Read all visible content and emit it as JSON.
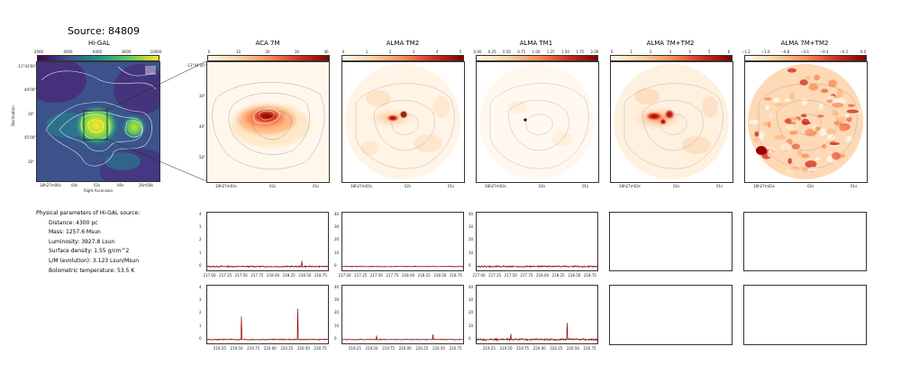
{
  "header": {
    "title": "Source: 84809"
  },
  "panels": [
    {
      "title": "Hi-GAL",
      "colorbar": [
        "2000",
        "4000",
        "6000",
        "8000",
        "10000"
      ]
    },
    {
      "title": "ACA 7M",
      "colorbar": [
        "0",
        "10",
        "20",
        "30",
        "40"
      ]
    },
    {
      "title": "ALMA TM2",
      "colorbar": [
        "0",
        "1",
        "2",
        "3",
        "4",
        "5"
      ]
    },
    {
      "title": "ALMA TM1",
      "colorbar": [
        "0.00",
        "0.25",
        "0.50",
        "0.75",
        "1.00",
        "1.25",
        "1.50",
        "1.75",
        "2.00"
      ]
    },
    {
      "title": "ALMA 7M+TM2",
      "colorbar": [
        "0",
        "1",
        "2",
        "3",
        "4",
        "5",
        "6"
      ]
    },
    {
      "title": "ALMA 7M+TM2",
      "colorbar": [
        "−1.2",
        "−1.0",
        "−0.8",
        "−0.6",
        "−0.4",
        "−0.2",
        "0.0"
      ]
    }
  ],
  "higal_axes": {
    "xlabel": "Right Ascension",
    "ylabel": "Declination",
    "xticks": [
      "18h27m06s",
      "04s",
      "02s",
      "00s",
      "26m58s"
    ],
    "yticks": [
      "-11°43'00\"",
      "44'00\"",
      "30\"",
      "45'00\"",
      "30\""
    ]
  },
  "map_axes": {
    "xticks": [
      "18h27m03s",
      "02s",
      "01s"
    ],
    "yticks": [
      "-11°44'20\"",
      "30\"",
      "40\"",
      "50\""
    ]
  },
  "parameters": {
    "heading": "Physical parameters of Hi-GAL source:",
    "distance": "Distance: 4300 pc",
    "mass": "Mass: 1257.6 Msun",
    "luminosity": "Luminosity: 3927.8 Lsun",
    "surface_density": "Surface density: 1.55 g/cm^2",
    "lm": "L/M (evolution): 3.123 Lsun/Msun",
    "tbol": "Bolometric temperature: 53.5 K"
  },
  "chart_data": {
    "type": "line",
    "spectra": [
      {
        "row": 1,
        "col": 1,
        "yticks": [
          "0",
          "1",
          "2",
          "3",
          "4"
        ],
        "ylim": [
          -0.3,
          4.2
        ],
        "xticks": [
          "217.00",
          "217.25",
          "217.50",
          "217.75",
          "218.00",
          "218.25",
          "218.50",
          "218.75"
        ],
        "xlim": [
          216.95,
          218.85
        ],
        "peaks": [
          [
            218.44,
            0.45
          ]
        ],
        "noise": 0.05
      },
      {
        "row": 1,
        "col": 2,
        "yticks": [
          "0",
          "10",
          "20",
          "30",
          "40"
        ],
        "ylim": [
          -3,
          42
        ],
        "xticks": [
          "217.00",
          "217.25",
          "217.50",
          "217.75",
          "218.00",
          "218.25",
          "218.50",
          "218.75"
        ],
        "xlim": [
          216.95,
          218.85
        ],
        "peaks": [],
        "noise": 0.3
      },
      {
        "row": 1,
        "col": 3,
        "yticks": [
          "0",
          "10",
          "20",
          "30",
          "40"
        ],
        "ylim": [
          -3,
          42
        ],
        "xticks": [
          "217.00",
          "217.25",
          "217.50",
          "217.75",
          "218.00",
          "218.25",
          "218.50",
          "218.75"
        ],
        "xlim": [
          216.95,
          218.85
        ],
        "peaks": [],
        "noise": 0.6
      },
      {
        "row": 2,
        "col": 1,
        "yticks": [
          "0",
          "1",
          "2",
          "3",
          "4"
        ],
        "ylim": [
          -0.3,
          4.2
        ],
        "xticks": [
          "219.25",
          "219.50",
          "219.75",
          "220.00",
          "220.25",
          "220.50",
          "220.75"
        ],
        "xlim": [
          219.05,
          220.85
        ],
        "peaks": [
          [
            219.56,
            1.8
          ],
          [
            220.4,
            2.4
          ]
        ],
        "noise": 0.04
      },
      {
        "row": 2,
        "col": 2,
        "yticks": [
          "0",
          "10",
          "20",
          "30",
          "40"
        ],
        "ylim": [
          -3,
          42
        ],
        "xticks": [
          "219.25",
          "219.50",
          "219.75",
          "220.00",
          "220.25",
          "220.50",
          "220.75"
        ],
        "xlim": [
          219.05,
          220.85
        ],
        "peaks": [
          [
            219.56,
            3.0
          ],
          [
            220.4,
            4.0
          ]
        ],
        "noise": 0.3
      },
      {
        "row": 2,
        "col": 3,
        "yticks": [
          "0",
          "10",
          "20",
          "30",
          "40"
        ],
        "ylim": [
          -3,
          42
        ],
        "xticks": [
          "219.25",
          "219.50",
          "219.75",
          "220.00",
          "220.25",
          "220.50",
          "220.75"
        ],
        "xlim": [
          219.05,
          220.85
        ],
        "peaks": [
          [
            219.56,
            4.5
          ],
          [
            220.4,
            13.0
          ]
        ],
        "noise": 0.7
      }
    ]
  }
}
